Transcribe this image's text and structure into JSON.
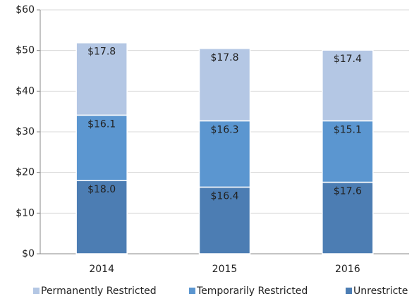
{
  "chart_data": {
    "type": "stacked_bar",
    "categories": [
      "2014",
      "2015",
      "2016"
    ],
    "series": [
      {
        "name": "Permanently Restricted",
        "color": "#b4c7e4",
        "values": [
          17.8,
          17.8,
          17.4
        ],
        "value_labels": [
          "$17.8",
          "$17.8",
          "$17.4"
        ]
      },
      {
        "name": "Temporarily Restricted",
        "color": "#5b96d0",
        "values": [
          16.1,
          16.3,
          15.1
        ],
        "value_labels": [
          "$16.1",
          "$16.3",
          "$15.1"
        ]
      },
      {
        "name": "Unrestricte",
        "color": "#4c7db3",
        "values": [
          18.0,
          16.4,
          17.6
        ],
        "value_labels": [
          "$18.0",
          "$16.4",
          "$17.6"
        ]
      }
    ],
    "ylim": [
      0,
      60
    ],
    "yticks": [
      {
        "value": 0,
        "label": "$0"
      },
      {
        "value": 10,
        "label": "$10"
      },
      {
        "value": 20,
        "label": "$20"
      },
      {
        "value": 30,
        "label": "$30"
      },
      {
        "value": 40,
        "label": "$40"
      },
      {
        "value": 50,
        "label": "$50"
      },
      {
        "value": 60,
        "label": "$60"
      }
    ],
    "grid": true
  }
}
